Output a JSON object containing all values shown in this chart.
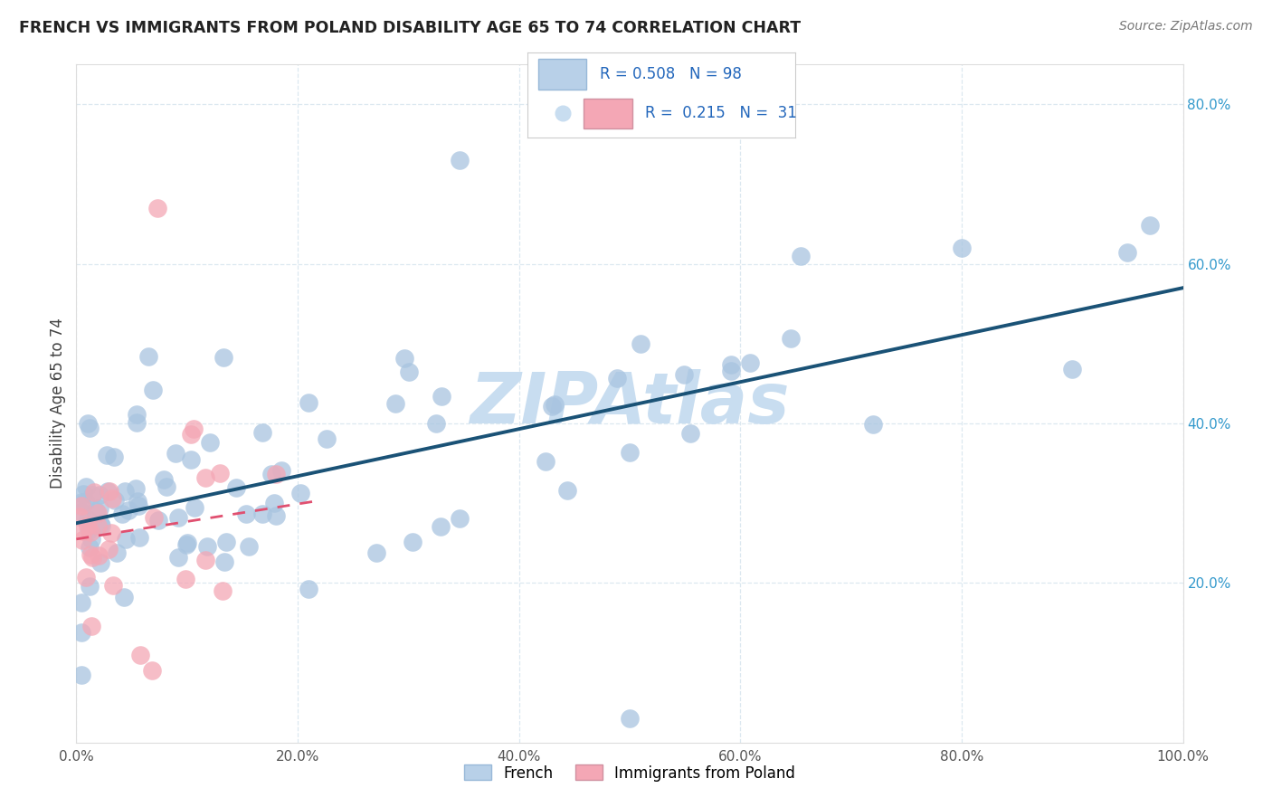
{
  "title": "FRENCH VS IMMIGRANTS FROM POLAND DISABILITY AGE 65 TO 74 CORRELATION CHART",
  "source": "Source: ZipAtlas.com",
  "ylabel": "Disability Age 65 to 74",
  "xlim": [
    0,
    1.0
  ],
  "ylim": [
    0,
    0.85
  ],
  "french_R": 0.508,
  "french_N": 98,
  "poland_R": 0.215,
  "poland_N": 31,
  "french_color": "#a8c4e0",
  "france_line_color": "#1a5276",
  "poland_color": "#f4a7b5",
  "poland_line_color": "#e05070",
  "legend_box_color_french": "#b8d0e8",
  "legend_box_color_poland": "#f4a7b5",
  "watermark": "ZIPAtlas",
  "watermark_color": "#c8ddf0",
  "background_color": "#ffffff",
  "grid_color": "#dce8f0",
  "title_color": "#222222",
  "axis_label_color": "#444444",
  "right_tick_color": "#3399cc",
  "source_color": "#777777"
}
